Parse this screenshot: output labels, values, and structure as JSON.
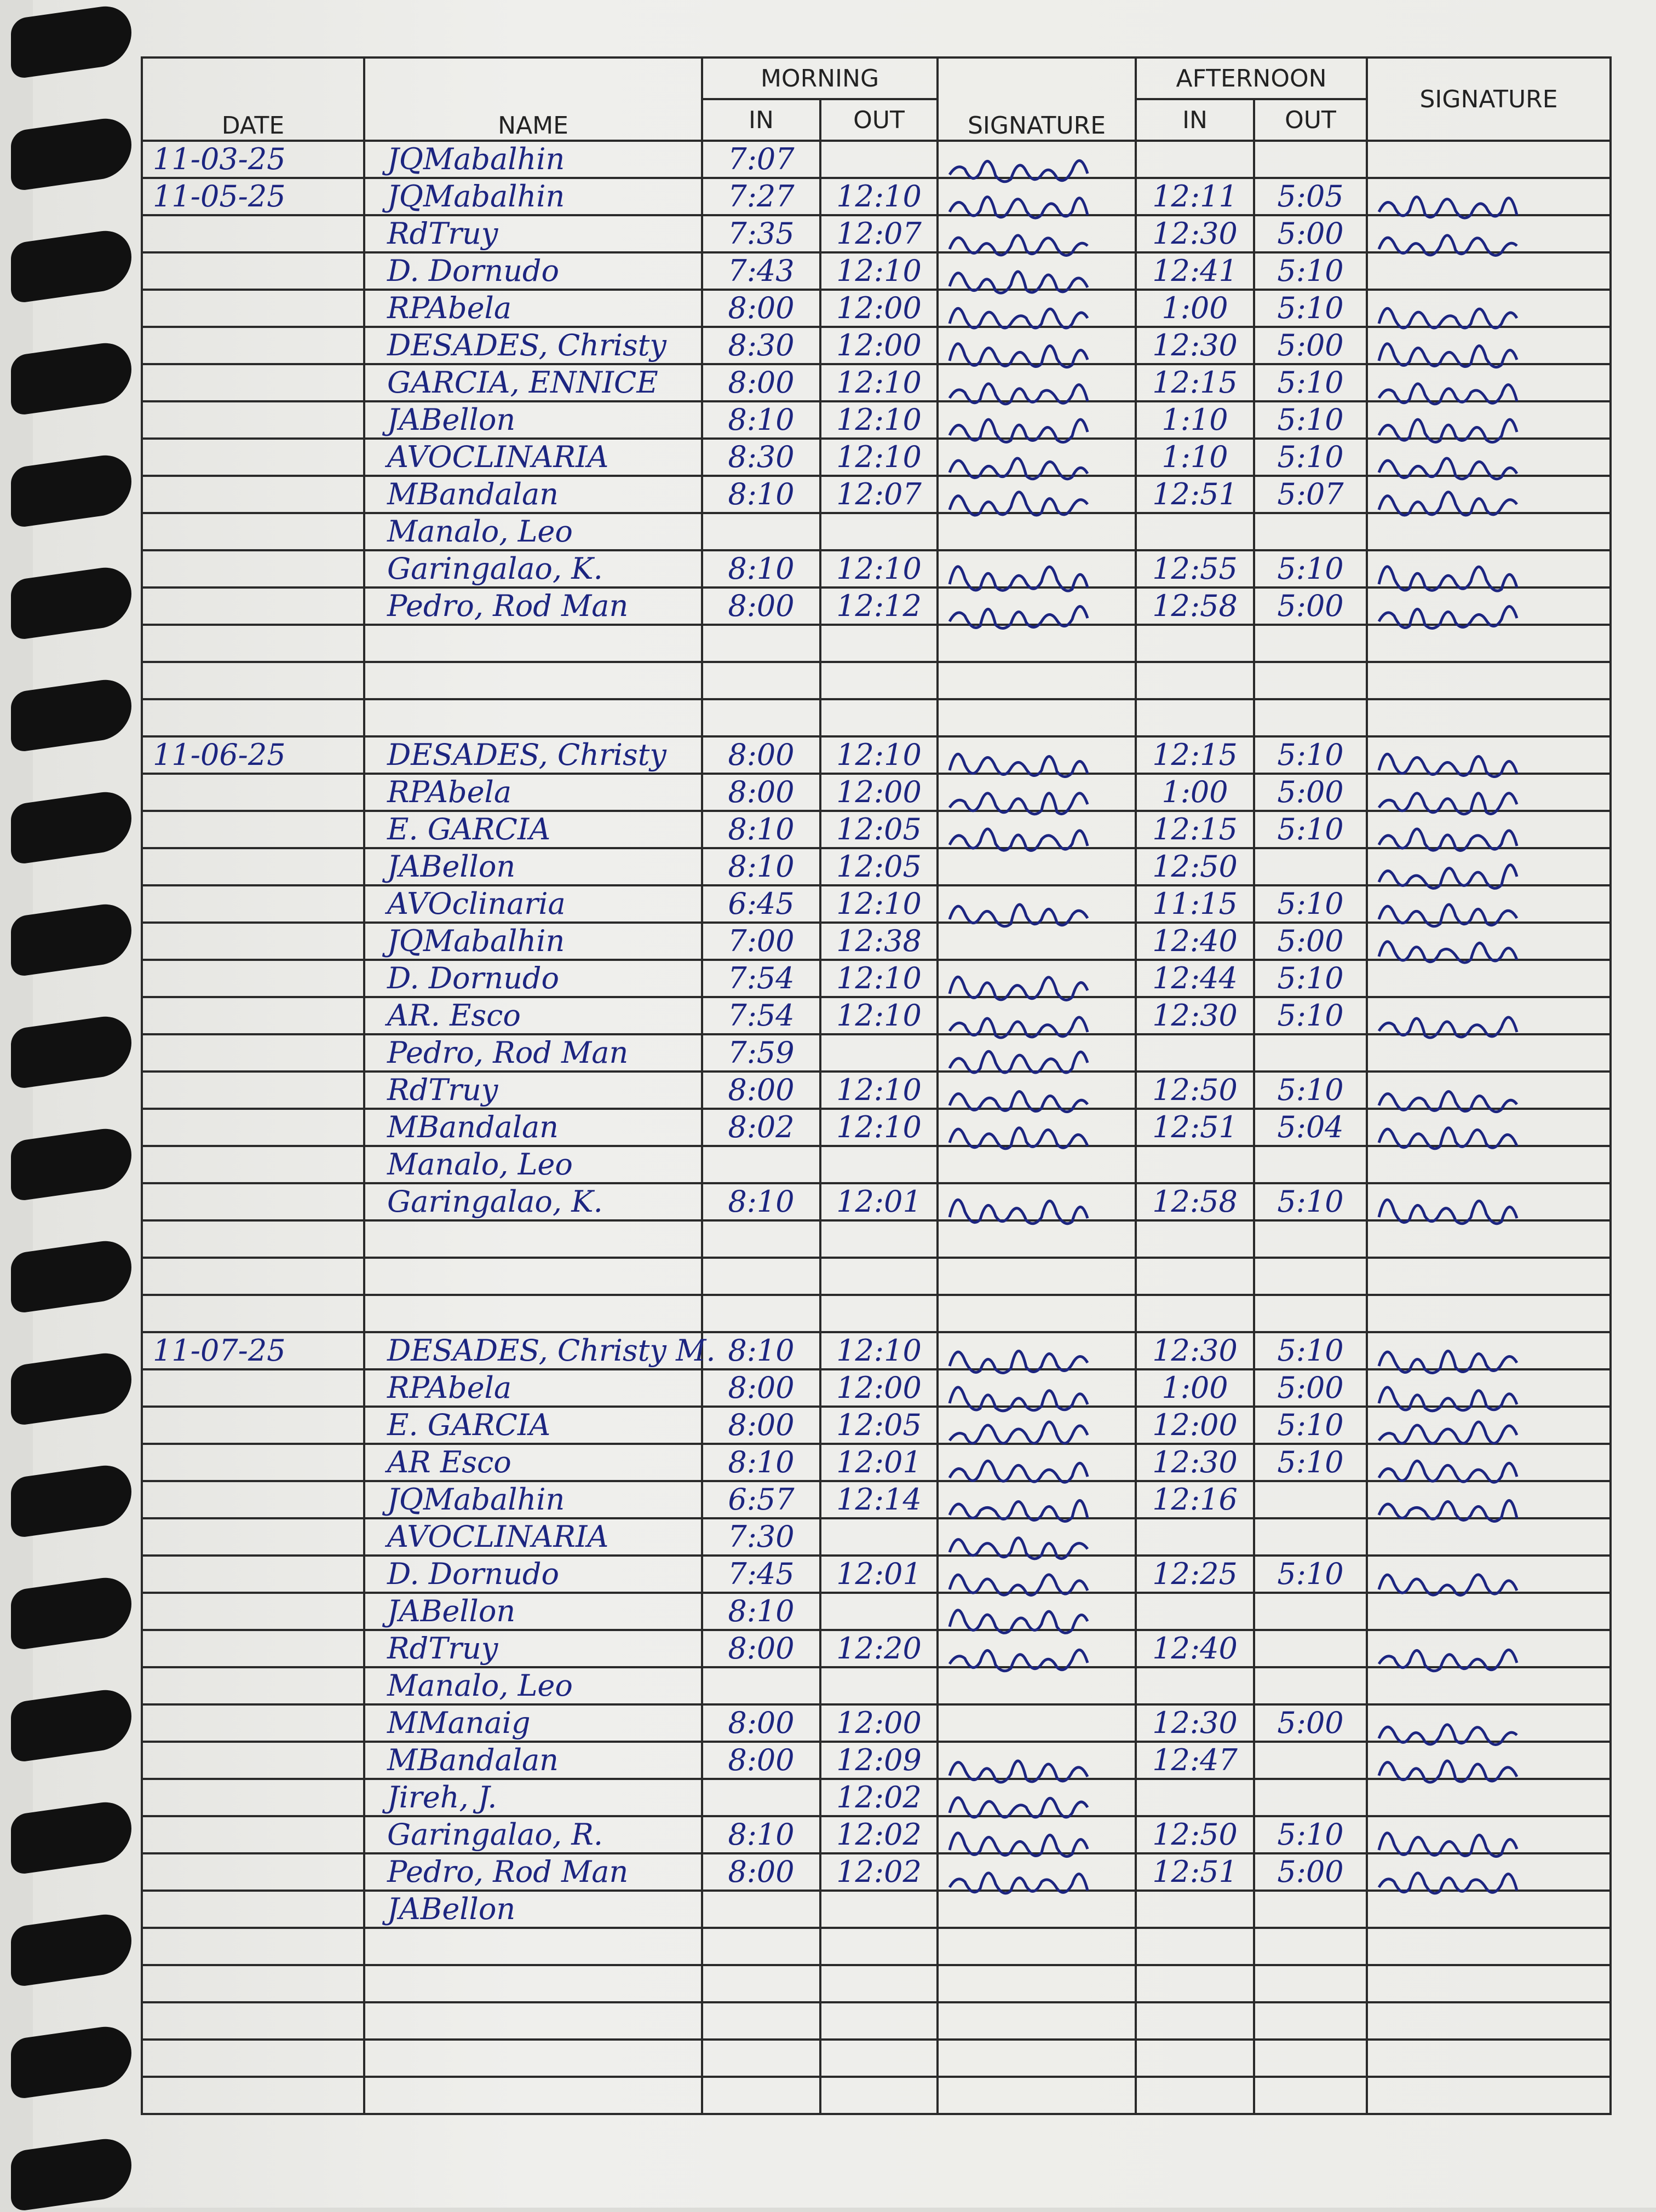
{
  "header": {
    "date": "DATE",
    "name": "NAME",
    "morning": "MORNING",
    "afternoon": "AFTERNOON",
    "in": "IN",
    "out": "OUT",
    "signature": "SIGNATURE"
  },
  "ink_color": "#1c2580",
  "rows": [
    {
      "date": "11-03-25",
      "name": "JQMabalhin",
      "am_in": "7:07",
      "am_out": "",
      "am_sig": true,
      "pm_in": "",
      "pm_out": "",
      "pm_sig": false
    },
    {
      "date": "11-05-25",
      "name": "JQMabalhin",
      "am_in": "7:27",
      "am_out": "12:10",
      "am_sig": true,
      "pm_in": "12:11",
      "pm_out": "5:05",
      "pm_sig": true
    },
    {
      "date": "",
      "name": "RdTruy",
      "am_in": "7:35",
      "am_out": "12:07",
      "am_sig": true,
      "pm_in": "12:30",
      "pm_out": "5:00",
      "pm_sig": true
    },
    {
      "date": "",
      "name": "D. Dornudo",
      "am_in": "7:43",
      "am_out": "12:10",
      "am_sig": true,
      "pm_in": "12:41",
      "pm_out": "5:10",
      "pm_sig": false
    },
    {
      "date": "",
      "name": "RPAbela",
      "am_in": "8:00",
      "am_out": "12:00",
      "am_sig": true,
      "pm_in": "1:00",
      "pm_out": "5:10",
      "pm_sig": true
    },
    {
      "date": "",
      "name": "DESADES, Christy",
      "am_in": "8:30",
      "am_out": "12:00",
      "am_sig": true,
      "pm_in": "12:30",
      "pm_out": "5:00",
      "pm_sig": true
    },
    {
      "date": "",
      "name": "GARCIA, ENNICE",
      "am_in": "8:00",
      "am_out": "12:10",
      "am_sig": true,
      "pm_in": "12:15",
      "pm_out": "5:10",
      "pm_sig": true
    },
    {
      "date": "",
      "name": "JABellon",
      "am_in": "8:10",
      "am_out": "12:10",
      "am_sig": true,
      "pm_in": "1:10",
      "pm_out": "5:10",
      "pm_sig": true
    },
    {
      "date": "",
      "name": "AVOCLINARIA",
      "am_in": "8:30",
      "am_out": "12:10",
      "am_sig": true,
      "pm_in": "1:10",
      "pm_out": "5:10",
      "pm_sig": true
    },
    {
      "date": "",
      "name": "MBandalan",
      "am_in": "8:10",
      "am_out": "12:07",
      "am_sig": true,
      "pm_in": "12:51",
      "pm_out": "5:07",
      "pm_sig": true
    },
    {
      "date": "",
      "name": "Manalo, Leo",
      "am_in": "",
      "am_out": "",
      "am_sig": false,
      "pm_in": "",
      "pm_out": "",
      "pm_sig": false
    },
    {
      "date": "",
      "name": "Garingalao, K.",
      "am_in": "8:10",
      "am_out": "12:10",
      "am_sig": true,
      "pm_in": "12:55",
      "pm_out": "5:10",
      "pm_sig": true
    },
    {
      "date": "",
      "name": "Pedro, Rod Man",
      "am_in": "8:00",
      "am_out": "12:12",
      "am_sig": true,
      "pm_in": "12:58",
      "pm_out": "5:00",
      "pm_sig": true
    },
    {
      "date": "",
      "name": "",
      "am_in": "",
      "am_out": "",
      "am_sig": false,
      "pm_in": "",
      "pm_out": "",
      "pm_sig": false
    },
    {
      "date": "",
      "name": "",
      "am_in": "",
      "am_out": "",
      "am_sig": false,
      "pm_in": "",
      "pm_out": "",
      "pm_sig": false
    },
    {
      "date": "",
      "name": "",
      "am_in": "",
      "am_out": "",
      "am_sig": false,
      "pm_in": "",
      "pm_out": "",
      "pm_sig": false
    },
    {
      "date": "11-06-25",
      "name": "DESADES, Christy",
      "am_in": "8:00",
      "am_out": "12:10",
      "am_sig": true,
      "pm_in": "12:15",
      "pm_out": "5:10",
      "pm_sig": true
    },
    {
      "date": "",
      "name": "RPAbela",
      "am_in": "8:00",
      "am_out": "12:00",
      "am_sig": true,
      "pm_in": "1:00",
      "pm_out": "5:00",
      "pm_sig": true
    },
    {
      "date": "",
      "name": "E. GARCIA",
      "am_in": "8:10",
      "am_out": "12:05",
      "am_sig": true,
      "pm_in": "12:15",
      "pm_out": "5:10",
      "pm_sig": true
    },
    {
      "date": "",
      "name": "JABellon",
      "am_in": "8:10",
      "am_out": "12:05",
      "am_sig": false,
      "pm_in": "12:50",
      "pm_out": "",
      "pm_sig": true
    },
    {
      "date": "",
      "name": "AVOclinaria",
      "am_in": "6:45",
      "am_out": "12:10",
      "am_sig": true,
      "pm_in": "11:15",
      "pm_out": "5:10",
      "pm_sig": true
    },
    {
      "date": "",
      "name": "JQMabalhin",
      "am_in": "7:00",
      "am_out": "12:38",
      "am_sig": false,
      "pm_in": "12:40",
      "pm_out": "5:00",
      "pm_sig": true
    },
    {
      "date": "",
      "name": "D. Dornudo",
      "am_in": "7:54",
      "am_out": "12:10",
      "am_sig": true,
      "pm_in": "12:44",
      "pm_out": "5:10",
      "pm_sig": false
    },
    {
      "date": "",
      "name": "AR. Esco",
      "am_in": "7:54",
      "am_out": "12:10",
      "am_sig": true,
      "pm_in": "12:30",
      "pm_out": "5:10",
      "pm_sig": true
    },
    {
      "date": "",
      "name": "Pedro, Rod Man",
      "am_in": "7:59",
      "am_out": "",
      "am_sig": true,
      "pm_in": "",
      "pm_out": "",
      "pm_sig": false
    },
    {
      "date": "",
      "name": "RdTruy",
      "am_in": "8:00",
      "am_out": "12:10",
      "am_sig": true,
      "pm_in": "12:50",
      "pm_out": "5:10",
      "pm_sig": true
    },
    {
      "date": "",
      "name": "MBandalan",
      "am_in": "8:02",
      "am_out": "12:10",
      "am_sig": true,
      "pm_in": "12:51",
      "pm_out": "5:04",
      "pm_sig": true
    },
    {
      "date": "",
      "name": "Manalo, Leo",
      "am_in": "",
      "am_out": "",
      "am_sig": false,
      "pm_in": "",
      "pm_out": "",
      "pm_sig": false
    },
    {
      "date": "",
      "name": "Garingalao, K.",
      "am_in": "8:10",
      "am_out": "12:01",
      "am_sig": true,
      "pm_in": "12:58",
      "pm_out": "5:10",
      "pm_sig": true
    },
    {
      "date": "",
      "name": "",
      "am_in": "",
      "am_out": "",
      "am_sig": false,
      "pm_in": "",
      "pm_out": "",
      "pm_sig": false
    },
    {
      "date": "",
      "name": "",
      "am_in": "",
      "am_out": "",
      "am_sig": false,
      "pm_in": "",
      "pm_out": "",
      "pm_sig": false
    },
    {
      "date": "",
      "name": "",
      "am_in": "",
      "am_out": "",
      "am_sig": false,
      "pm_in": "",
      "pm_out": "",
      "pm_sig": false
    },
    {
      "date": "11-07-25",
      "name": "DESADES, Christy M.",
      "am_in": "8:10",
      "am_out": "12:10",
      "am_sig": true,
      "pm_in": "12:30",
      "pm_out": "5:10",
      "pm_sig": true
    },
    {
      "date": "",
      "name": "RPAbela",
      "am_in": "8:00",
      "am_out": "12:00",
      "am_sig": true,
      "pm_in": "1:00",
      "pm_out": "5:00",
      "pm_sig": true
    },
    {
      "date": "",
      "name": "E. GARCIA",
      "am_in": "8:00",
      "am_out": "12:05",
      "am_sig": true,
      "pm_in": "12:00",
      "pm_out": "5:10",
      "pm_sig": true
    },
    {
      "date": "",
      "name": "AR Esco",
      "am_in": "8:10",
      "am_out": "12:01",
      "am_sig": true,
      "pm_in": "12:30",
      "pm_out": "5:10",
      "pm_sig": true
    },
    {
      "date": "",
      "name": "JQMabalhin",
      "am_in": "6:57",
      "am_out": "12:14",
      "am_sig": true,
      "pm_in": "12:16",
      "pm_out": "",
      "pm_sig": true
    },
    {
      "date": "",
      "name": "AVOCLINARIA",
      "am_in": "7:30",
      "am_out": "",
      "am_sig": true,
      "pm_in": "",
      "pm_out": "",
      "pm_sig": false
    },
    {
      "date": "",
      "name": "D. Dornudo",
      "am_in": "7:45",
      "am_out": "12:01",
      "am_sig": true,
      "pm_in": "12:25",
      "pm_out": "5:10",
      "pm_sig": true
    },
    {
      "date": "",
      "name": "JABellon",
      "am_in": "8:10",
      "am_out": "",
      "am_sig": true,
      "pm_in": "",
      "pm_out": "",
      "pm_sig": false
    },
    {
      "date": "",
      "name": "RdTruy",
      "am_in": "8:00",
      "am_out": "12:20",
      "am_sig": true,
      "pm_in": "12:40",
      "pm_out": "",
      "pm_sig": true
    },
    {
      "date": "",
      "name": "Manalo, Leo",
      "am_in": "",
      "am_out": "",
      "am_sig": false,
      "pm_in": "",
      "pm_out": "",
      "pm_sig": false
    },
    {
      "date": "",
      "name": "MManaig",
      "am_in": "8:00",
      "am_out": "12:00",
      "am_sig": false,
      "pm_in": "12:30",
      "pm_out": "5:00",
      "pm_sig": true
    },
    {
      "date": "",
      "name": "MBandalan",
      "am_in": "8:00",
      "am_out": "12:09",
      "am_sig": true,
      "pm_in": "12:47",
      "pm_out": "",
      "pm_sig": true
    },
    {
      "date": "",
      "name": "Jireh, J.",
      "am_in": "",
      "am_out": "12:02",
      "am_sig": true,
      "pm_in": "",
      "pm_out": "",
      "pm_sig": false
    },
    {
      "date": "",
      "name": "Garingalao, R.",
      "am_in": "8:10",
      "am_out": "12:02",
      "am_sig": true,
      "pm_in": "12:50",
      "pm_out": "5:10",
      "pm_sig": true
    },
    {
      "date": "",
      "name": "Pedro, Rod Man",
      "am_in": "8:00",
      "am_out": "12:02",
      "am_sig": true,
      "pm_in": "12:51",
      "pm_out": "5:00",
      "pm_sig": true
    },
    {
      "date": "",
      "name": "JABellon",
      "am_in": "",
      "am_out": "",
      "am_sig": false,
      "pm_in": "",
      "pm_out": "",
      "pm_sig": false
    }
  ]
}
